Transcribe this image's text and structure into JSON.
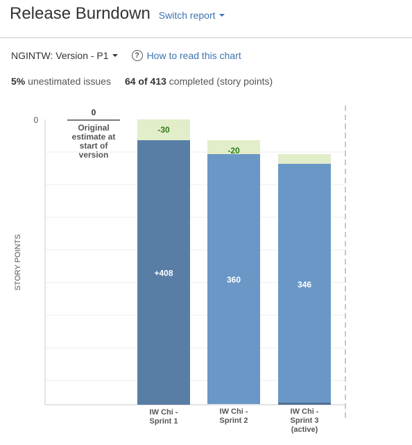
{
  "header": {
    "title": "Release Burndown",
    "switch_label": "Switch report"
  },
  "toolbar": {
    "version_label": "NGINTW: Version - P1",
    "help_label": "How to read this chart",
    "help_glyph": "?"
  },
  "stats": {
    "unestimated_pct": "5%",
    "unestimated_text": "unestimated issues",
    "completed_count": "64 of 413",
    "completed_text": "completed (story points)"
  },
  "colors": {
    "work": "#6a97c6",
    "work_first": "#587ea6",
    "scope_removed": "#e2edc9",
    "scope_text": "#2f7d16"
  },
  "chart_data": {
    "type": "bar",
    "ylabel": "STORY POINTS",
    "y_ticks": [
      "0"
    ],
    "categories": [
      "Original estimate at start of version",
      "IW Chi - Sprint 1",
      "IW Chi - Sprint 2",
      "IW Chi - Sprint 3 (active)"
    ],
    "columns": [
      {
        "label_lines": [
          "Original",
          "estimate at",
          "start of",
          "version"
        ],
        "remaining": 0,
        "remaining_label": "0",
        "scope_removed": 0,
        "scope_label": "",
        "offset": 0
      },
      {
        "label_lines": [
          "IW Chi -",
          "Sprint 1"
        ],
        "remaining": 408,
        "remaining_label": "+408",
        "scope_removed": 30,
        "scope_label": "-30",
        "offset": 0
      },
      {
        "label_lines": [
          "IW Chi -",
          "Sprint 2"
        ],
        "remaining": 360,
        "remaining_label": "360",
        "scope_removed": 20,
        "scope_label": "-20",
        "offset": 30
      },
      {
        "label_lines": [
          "IW Chi -",
          "Sprint 3",
          "(active)"
        ],
        "remaining": 346,
        "remaining_label": "346",
        "scope_removed": 14,
        "scope_label": "",
        "offset": 50
      }
    ]
  }
}
